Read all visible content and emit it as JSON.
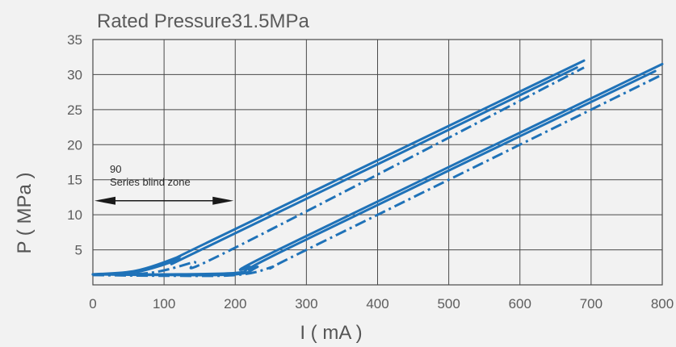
{
  "chart_data": {
    "type": "line",
    "title": "Rated Pressure31.5MPa",
    "xlabel": "I ( mA )",
    "ylabel": "P ( MPa )",
    "xlim": [
      0,
      800
    ],
    "ylim": [
      0,
      35
    ],
    "x_ticks": [
      0,
      100,
      200,
      300,
      400,
      500,
      600,
      700,
      800
    ],
    "y_ticks": [
      5,
      10,
      15,
      20,
      25,
      30,
      35
    ],
    "grid": true,
    "annotation": {
      "line1": "90",
      "line2": "Series blind zone",
      "range_x": [
        0,
        200
      ],
      "arrow_y": 12
    },
    "series": [
      {
        "style": "solid",
        "points": [
          [
            0,
            1.5
          ],
          [
            60,
            2.0
          ],
          [
            120,
            4.0
          ],
          [
            160,
            6.0
          ],
          [
            690,
            32.0
          ]
        ]
      },
      {
        "style": "solid",
        "points": [
          [
            0,
            1.5
          ],
          [
            60,
            1.8
          ],
          [
            120,
            3.6
          ],
          [
            160,
            5.4
          ],
          [
            680,
            31.0
          ]
        ]
      },
      {
        "style": "dashdot",
        "points": [
          [
            0,
            1.4
          ],
          [
            80,
            1.7
          ],
          [
            140,
            3.2
          ],
          [
            190,
            4.8
          ],
          [
            690,
            31.0
          ]
        ]
      },
      {
        "style": "solid",
        "points": [
          [
            0,
            1.5
          ],
          [
            100,
            1.5
          ],
          [
            200,
            1.7
          ],
          [
            220,
            2.5
          ],
          [
            260,
            5.0
          ],
          [
            800,
            31.5
          ]
        ]
      },
      {
        "style": "solid",
        "points": [
          [
            0,
            1.5
          ],
          [
            100,
            1.4
          ],
          [
            200,
            1.5
          ],
          [
            230,
            2.5
          ],
          [
            270,
            5.0
          ],
          [
            790,
            30.5
          ]
        ]
      },
      {
        "style": "dashdot",
        "points": [
          [
            0,
            1.4
          ],
          [
            100,
            1.3
          ],
          [
            200,
            1.4
          ],
          [
            250,
            2.5
          ],
          [
            300,
            5.0
          ],
          [
            800,
            30.0
          ]
        ]
      }
    ],
    "colors": {
      "line": "#1f72b8",
      "grid": "#4a4a4a",
      "arrow": "#1a1a1a"
    }
  }
}
